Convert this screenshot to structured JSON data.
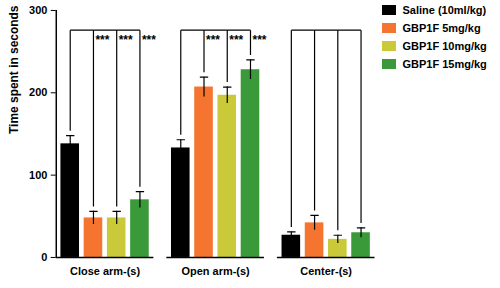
{
  "chart_data": {
    "type": "bar",
    "categories": [
      "Close arm-(s)",
      "Open arm-(s)",
      "Center-(s)"
    ],
    "series": [
      {
        "name": "Saline (10ml/kg)",
        "color": "#000000",
        "values": [
          138,
          133,
          27
        ],
        "errors": [
          10,
          10,
          4
        ]
      },
      {
        "name": "GBP1F 5mg/kg",
        "color": "#f5742f",
        "values": [
          48,
          207,
          42
        ],
        "errors": [
          8,
          12,
          9
        ]
      },
      {
        "name": "GBP1F 10mg/kg",
        "color": "#c9c93a",
        "values": [
          48,
          197,
          22
        ],
        "errors": [
          8,
          10,
          5
        ]
      },
      {
        "name": "GBP1F 15mg/kg",
        "color": "#3a9a3a",
        "values": [
          70,
          228,
          30
        ],
        "errors": [
          10,
          12,
          6
        ]
      }
    ],
    "ylabel": "Time spent in seconds",
    "ylim": [
      0,
      300
    ],
    "yticks": [
      0,
      100,
      200,
      300
    ],
    "legend": "top-right",
    "annotations": [
      {
        "category": "Close arm-(s)",
        "series": "GBP1F 5mg/kg",
        "text": "***"
      },
      {
        "category": "Close arm-(s)",
        "series": "GBP1F 10mg/kg",
        "text": "***"
      },
      {
        "category": "Close arm-(s)",
        "series": "GBP1F 15mg/kg",
        "text": "***"
      },
      {
        "category": "Open arm-(s)",
        "series": "GBP1F 5mg/kg",
        "text": "***"
      },
      {
        "category": "Open arm-(s)",
        "series": "GBP1F 10mg/kg",
        "text": "***"
      },
      {
        "category": "Open arm-(s)",
        "series": "GBP1F 15mg/kg",
        "text": "***"
      }
    ]
  }
}
